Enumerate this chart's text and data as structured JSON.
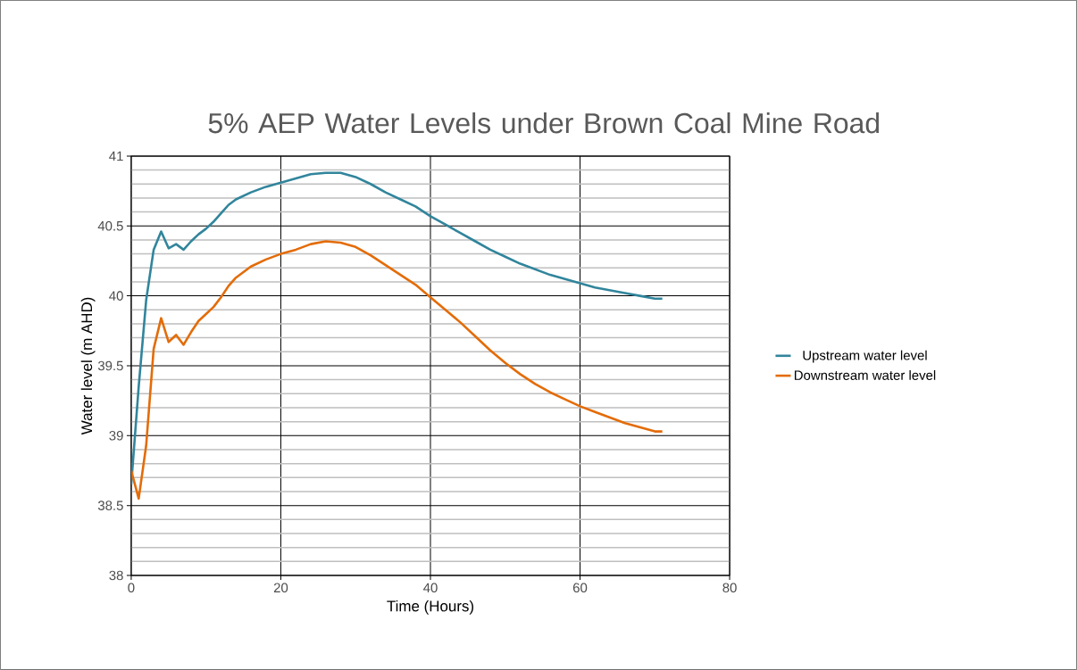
{
  "chart_data": {
    "type": "line",
    "title": "5% AEP Water Levels under Brown Coal Mine Road",
    "xlabel": "Time (Hours)",
    "ylabel": "Water level (m AHD)",
    "xlim": [
      0,
      80
    ],
    "xticks": [
      0,
      20,
      40,
      60,
      80
    ],
    "ylim": [
      38,
      41
    ],
    "yticks": [
      38,
      38.5,
      39,
      39.5,
      40,
      40.5,
      41
    ],
    "grid": true,
    "legend": "right",
    "marker": "none",
    "line_style": "solid",
    "series": [
      {
        "name": "Upstream water level",
        "color": "#31859c",
        "x": [
          0,
          1,
          2,
          3,
          4,
          5,
          6,
          7,
          8,
          9,
          10,
          11,
          12,
          13,
          14,
          16,
          18,
          20,
          22,
          24,
          26,
          28,
          30,
          32,
          34,
          36,
          38,
          40,
          42,
          44,
          46,
          48,
          50,
          52,
          54,
          56,
          58,
          60,
          62,
          64,
          66,
          68,
          70,
          71
        ],
        "values": [
          38.65,
          39.35,
          39.97,
          40.33,
          40.46,
          40.34,
          40.37,
          40.33,
          40.39,
          40.44,
          40.48,
          40.53,
          40.59,
          40.65,
          40.69,
          40.74,
          40.78,
          40.81,
          40.84,
          40.87,
          40.88,
          40.88,
          40.85,
          40.8,
          40.74,
          40.69,
          40.64,
          40.57,
          40.51,
          40.45,
          40.39,
          40.33,
          40.28,
          40.23,
          40.19,
          40.15,
          40.12,
          40.09,
          40.06,
          40.04,
          40.02,
          40.0,
          39.98,
          39.98
        ]
      },
      {
        "name": "Downstream water level",
        "color": "#e36c09",
        "x": [
          0,
          1,
          2,
          3,
          4,
          5,
          6,
          7,
          8,
          9,
          10,
          11,
          12,
          13,
          14,
          16,
          18,
          20,
          22,
          24,
          26,
          28,
          30,
          32,
          34,
          36,
          38,
          40,
          42,
          44,
          46,
          48,
          50,
          52,
          54,
          56,
          58,
          60,
          62,
          64,
          66,
          68,
          70,
          71
        ],
        "values": [
          38.75,
          38.55,
          38.93,
          39.62,
          39.84,
          39.67,
          39.72,
          39.65,
          39.74,
          39.82,
          39.87,
          39.92,
          39.99,
          40.07,
          40.13,
          40.21,
          40.26,
          40.3,
          40.33,
          40.37,
          40.39,
          40.38,
          40.35,
          40.29,
          40.22,
          40.15,
          40.08,
          39.99,
          39.9,
          39.81,
          39.71,
          39.61,
          39.52,
          39.44,
          39.37,
          39.31,
          39.26,
          39.21,
          39.17,
          39.13,
          39.09,
          39.06,
          39.03,
          39.03
        ]
      }
    ]
  }
}
